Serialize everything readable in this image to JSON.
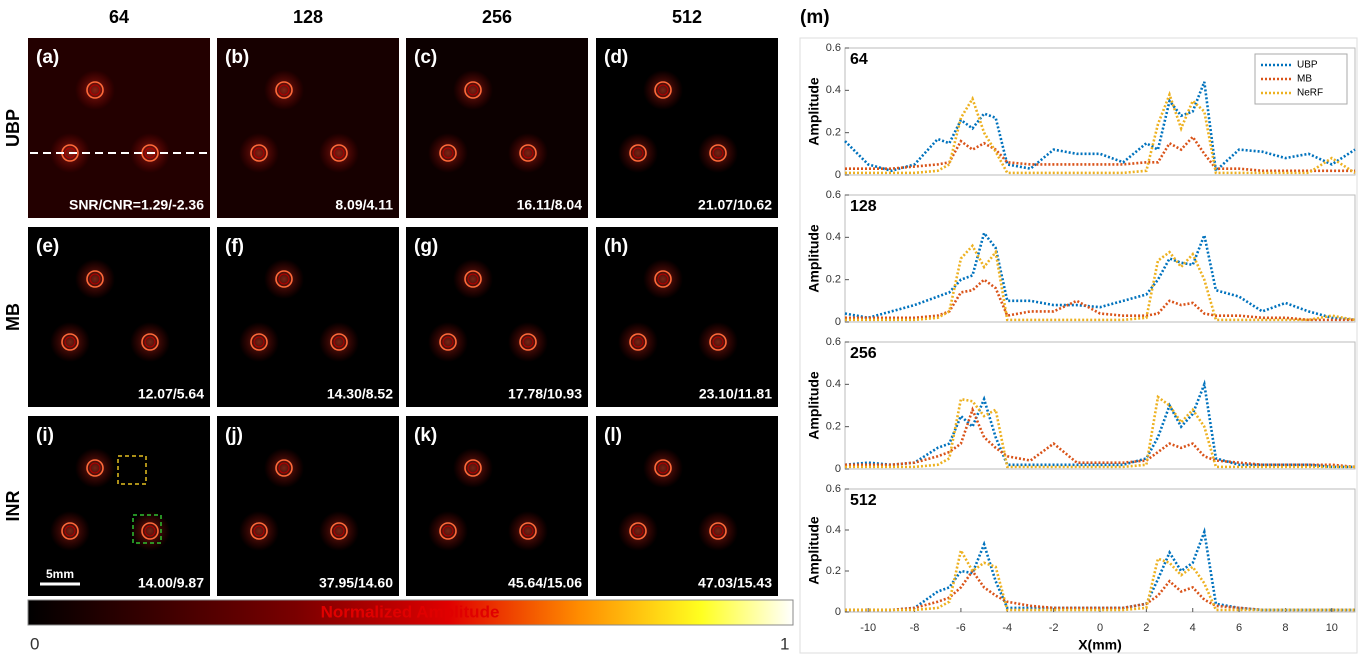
{
  "figure": {
    "column_headers": [
      "64",
      "128",
      "256",
      "512"
    ],
    "row_labels": [
      "UBP",
      "MB",
      "INR"
    ],
    "panels": [
      {
        "letter": "(a)",
        "metric": "SNR/CNR=1.29/-2.36"
      },
      {
        "letter": "(b)",
        "metric": "8.09/4.11"
      },
      {
        "letter": "(c)",
        "metric": "16.11/8.04"
      },
      {
        "letter": "(d)",
        "metric": "21.07/10.62"
      },
      {
        "letter": "(e)",
        "metric": "12.07/5.64"
      },
      {
        "letter": "(f)",
        "metric": "14.30/8.52"
      },
      {
        "letter": "(g)",
        "metric": "17.78/10.93"
      },
      {
        "letter": "(h)",
        "metric": "23.10/11.81"
      },
      {
        "letter": "(i)",
        "metric": "14.00/9.87"
      },
      {
        "letter": "(j)",
        "metric": "37.95/14.60"
      },
      {
        "letter": "(k)",
        "metric": "45.64/15.06"
      },
      {
        "letter": "(l)",
        "metric": "47.03/15.43"
      }
    ],
    "scale_bar": "5mm",
    "colorbar": {
      "label": "Normalized Amplitude",
      "min": 0,
      "max": 1
    },
    "panel_m": "(m)"
  },
  "chart_data": [
    {
      "type": "line",
      "title": "64",
      "ylabel": "Amplitude",
      "legend": "upper right",
      "x": [
        -11,
        -10,
        -9,
        -8,
        -7,
        -6.5,
        -6,
        -5.5,
        -5,
        -4.5,
        -4,
        -3,
        -2,
        -1,
        0,
        1,
        2,
        2.5,
        3,
        3.5,
        4,
        4.5,
        5,
        6,
        7,
        8,
        9,
        10,
        11
      ],
      "xlim": [
        -11,
        11
      ],
      "ylim": [
        0,
        0.6
      ],
      "yticks": [
        0,
        0.2,
        0.4,
        0.6
      ],
      "series": [
        {
          "name": "UBP",
          "color": "#0072bd",
          "values": [
            0.16,
            0.05,
            0.02,
            0.05,
            0.17,
            0.15,
            0.26,
            0.22,
            0.29,
            0.27,
            0.05,
            0.03,
            0.12,
            0.1,
            0.1,
            0.06,
            0.15,
            0.12,
            0.35,
            0.28,
            0.3,
            0.44,
            0.02,
            0.12,
            0.11,
            0.08,
            0.1,
            0.05,
            0.12
          ]
        },
        {
          "name": "MB",
          "color": "#d95319",
          "values": [
            0.03,
            0.03,
            0.03,
            0.04,
            0.05,
            0.06,
            0.16,
            0.12,
            0.15,
            0.12,
            0.06,
            0.05,
            0.05,
            0.05,
            0.05,
            0.05,
            0.06,
            0.06,
            0.15,
            0.12,
            0.18,
            0.1,
            0.03,
            0.03,
            0.02,
            0.02,
            0.02,
            0.02,
            0.02
          ]
        },
        {
          "name": "NeRF",
          "color": "#edb120",
          "values": [
            0.01,
            0.01,
            0.01,
            0.01,
            0.02,
            0.05,
            0.27,
            0.36,
            0.2,
            0.11,
            0.01,
            0.01,
            0.01,
            0.01,
            0.01,
            0.01,
            0.02,
            0.24,
            0.38,
            0.22,
            0.35,
            0.3,
            0.01,
            0.01,
            0.01,
            0.01,
            0.01,
            0.08,
            0.01
          ]
        }
      ]
    },
    {
      "type": "line",
      "title": "128",
      "ylabel": "Amplitude",
      "x": [
        -11,
        -10,
        -9,
        -8,
        -7,
        -6.5,
        -6,
        -5.5,
        -5,
        -4.5,
        -4,
        -3,
        -2,
        -1,
        0,
        1,
        2,
        2.5,
        3,
        3.5,
        4,
        4.5,
        5,
        6,
        7,
        8,
        9,
        10,
        11
      ],
      "xlim": [
        -11,
        11
      ],
      "ylim": [
        0,
        0.6
      ],
      "yticks": [
        0,
        0.2,
        0.4,
        0.6
      ],
      "series": [
        {
          "color": "#0072bd",
          "values": [
            0.04,
            0.02,
            0.05,
            0.08,
            0.12,
            0.14,
            0.2,
            0.22,
            0.42,
            0.35,
            0.1,
            0.1,
            0.08,
            0.08,
            0.07,
            0.1,
            0.13,
            0.2,
            0.3,
            0.28,
            0.27,
            0.41,
            0.15,
            0.12,
            0.05,
            0.09,
            0.05,
            0.02,
            0.01
          ]
        },
        {
          "color": "#d95319",
          "values": [
            0.02,
            0.02,
            0.02,
            0.02,
            0.03,
            0.05,
            0.14,
            0.15,
            0.2,
            0.16,
            0.03,
            0.05,
            0.05,
            0.1,
            0.04,
            0.03,
            0.03,
            0.04,
            0.1,
            0.08,
            0.09,
            0.04,
            0.03,
            0.03,
            0.02,
            0.02,
            0.01,
            0.01,
            0.01
          ]
        },
        {
          "color": "#edb120",
          "values": [
            0.01,
            0.01,
            0.01,
            0.01,
            0.02,
            0.05,
            0.3,
            0.36,
            0.26,
            0.33,
            0.01,
            0.01,
            0.01,
            0.01,
            0.01,
            0.01,
            0.02,
            0.29,
            0.33,
            0.26,
            0.32,
            0.2,
            0.01,
            0.01,
            0.01,
            0.01,
            0.01,
            0.03,
            0.01
          ]
        }
      ]
    },
    {
      "type": "line",
      "title": "256",
      "ylabel": "Amplitude",
      "x": [
        -11,
        -10,
        -9,
        -8,
        -7,
        -6.5,
        -6,
        -5.5,
        -5,
        -4.5,
        -4,
        -3,
        -2,
        -1,
        0,
        1,
        2,
        2.5,
        3,
        3.5,
        4,
        4.5,
        5,
        6,
        7,
        8,
        9,
        10,
        11
      ],
      "xlim": [
        -11,
        11
      ],
      "ylim": [
        0,
        0.6
      ],
      "yticks": [
        0,
        0.2,
        0.4,
        0.6
      ],
      "series": [
        {
          "color": "#0072bd",
          "values": [
            0.02,
            0.03,
            0.02,
            0.03,
            0.1,
            0.12,
            0.25,
            0.2,
            0.33,
            0.15,
            0.02,
            0.02,
            0.02,
            0.02,
            0.02,
            0.02,
            0.05,
            0.15,
            0.3,
            0.2,
            0.26,
            0.4,
            0.05,
            0.02,
            0.02,
            0.02,
            0.02,
            0.01,
            0.01
          ]
        },
        {
          "color": "#d95319",
          "values": [
            0.02,
            0.02,
            0.02,
            0.03,
            0.06,
            0.08,
            0.12,
            0.28,
            0.15,
            0.1,
            0.06,
            0.04,
            0.12,
            0.03,
            0.03,
            0.03,
            0.04,
            0.08,
            0.12,
            0.1,
            0.12,
            0.06,
            0.04,
            0.03,
            0.02,
            0.02,
            0.02,
            0.02,
            0.01
          ]
        },
        {
          "color": "#edb120",
          "values": [
            0.01,
            0.01,
            0.01,
            0.01,
            0.02,
            0.05,
            0.33,
            0.32,
            0.25,
            0.28,
            0.01,
            0.01,
            0.01,
            0.01,
            0.01,
            0.01,
            0.02,
            0.34,
            0.3,
            0.22,
            0.28,
            0.2,
            0.01,
            0.01,
            0.01,
            0.01,
            0.01,
            0.01,
            0.01
          ]
        }
      ]
    },
    {
      "type": "line",
      "title": "512",
      "ylabel": "Amplitude",
      "xlabel": "X(mm)",
      "x": [
        -11,
        -10,
        -9,
        -8,
        -7,
        -6.5,
        -6,
        -5.5,
        -5,
        -4.5,
        -4,
        -3,
        -2,
        -1,
        0,
        1,
        2,
        2.5,
        3,
        3.5,
        4,
        4.5,
        5,
        6,
        7,
        8,
        9,
        10,
        11
      ],
      "xlim": [
        -11,
        11
      ],
      "xticks": [
        -10,
        -8,
        -6,
        -4,
        -2,
        0,
        2,
        4,
        6,
        8,
        10
      ],
      "ylim": [
        0,
        0.6
      ],
      "yticks": [
        0,
        0.2,
        0.4,
        0.6
      ],
      "series": [
        {
          "color": "#0072bd",
          "values": [
            0.01,
            0.01,
            0.01,
            0.02,
            0.1,
            0.12,
            0.2,
            0.19,
            0.33,
            0.15,
            0.02,
            0.02,
            0.02,
            0.02,
            0.02,
            0.02,
            0.04,
            0.16,
            0.29,
            0.2,
            0.24,
            0.39,
            0.04,
            0.02,
            0.01,
            0.01,
            0.01,
            0.01,
            0.01
          ]
        },
        {
          "color": "#d95319",
          "values": [
            0.01,
            0.01,
            0.01,
            0.02,
            0.05,
            0.07,
            0.12,
            0.2,
            0.12,
            0.08,
            0.05,
            0.03,
            0.02,
            0.02,
            0.02,
            0.02,
            0.04,
            0.08,
            0.15,
            0.1,
            0.12,
            0.06,
            0.03,
            0.02,
            0.01,
            0.01,
            0.01,
            0.01,
            0.01
          ]
        },
        {
          "color": "#edb120",
          "values": [
            0.01,
            0.01,
            0.01,
            0.01,
            0.02,
            0.05,
            0.3,
            0.2,
            0.24,
            0.22,
            0.01,
            0.01,
            0.01,
            0.01,
            0.01,
            0.01,
            0.02,
            0.26,
            0.24,
            0.18,
            0.22,
            0.14,
            0.01,
            0.01,
            0.01,
            0.01,
            0.01,
            0.01,
            0.01
          ]
        }
      ]
    }
  ]
}
